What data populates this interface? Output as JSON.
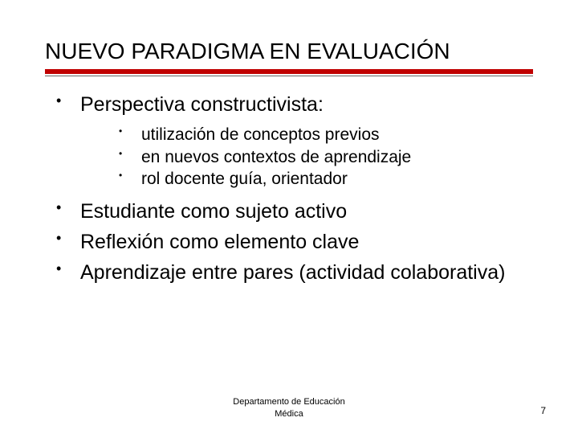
{
  "title": "NUEVO PARADIGMA EN EVALUACIÓN",
  "colors": {
    "accent": "#c00000",
    "text": "#000000",
    "background": "#ffffff"
  },
  "typography": {
    "title_fontsize": 28,
    "level1_fontsize": 25,
    "level2_fontsize": 21,
    "footer_fontsize": 11
  },
  "bullets": {
    "item1": {
      "text": "Perspectiva constructivista:",
      "sub": {
        "s1": "utilización de conceptos previos",
        "s2": "en nuevos contextos de aprendizaje",
        "s3": "rol docente guía, orientador"
      }
    },
    "item2": "Estudiante como sujeto activo",
    "item3": "Reflexión como elemento clave",
    "item4": "Aprendizaje entre pares (actividad colaborativa)"
  },
  "footer": {
    "line1": "Departamento de Educación",
    "line2": "Médica"
  },
  "page_number": "7"
}
